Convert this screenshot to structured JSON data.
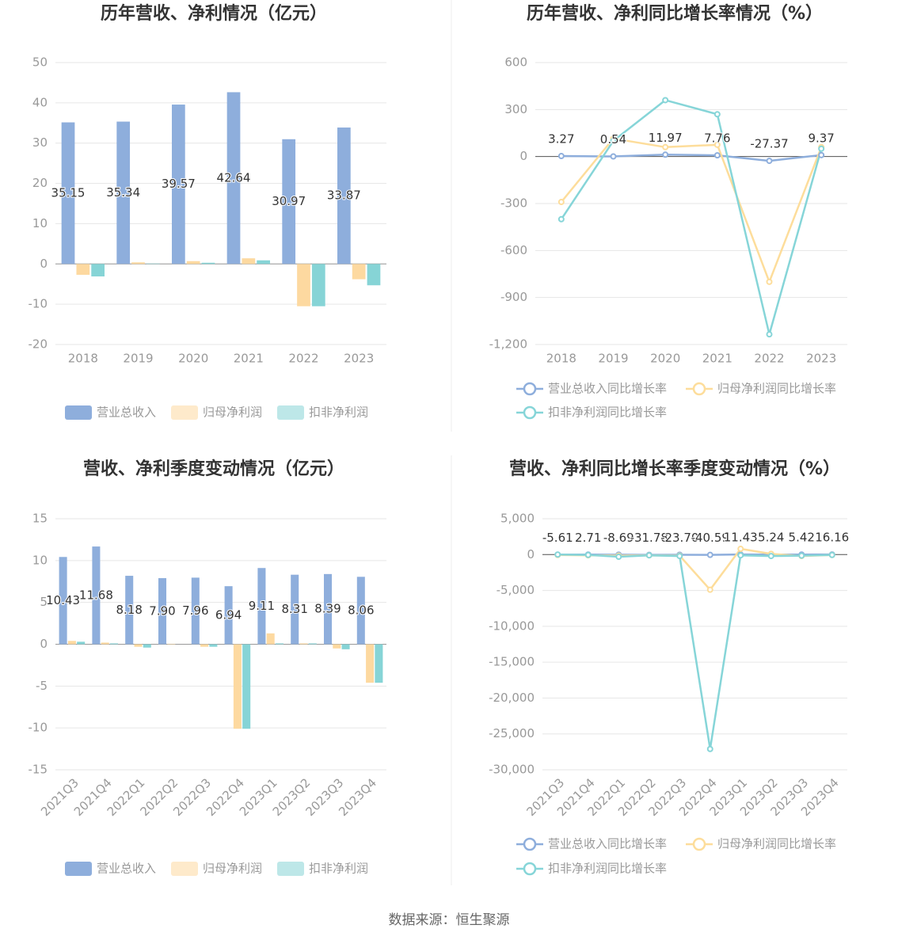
{
  "chart_data": [
    {
      "type": "bar",
      "title": "历年营收、净利情况（亿元）",
      "categories": [
        "2018",
        "2019",
        "2020",
        "2021",
        "2022",
        "2023"
      ],
      "series": [
        {
          "name": "营业总收入",
          "color": "#8eaedc",
          "show_labels": true,
          "values": [
            35.15,
            35.34,
            39.57,
            42.64,
            30.97,
            33.87
          ]
        },
        {
          "name": "归母净利润",
          "color": "#fdd9a0",
          "values": [
            -2.7,
            0.4,
            0.7,
            1.4,
            -10.5,
            -3.8
          ]
        },
        {
          "name": "扣非净利润",
          "color": "#86d4d6",
          "values": [
            -3.1,
            0.1,
            0.3,
            0.9,
            -10.5,
            -5.3
          ]
        }
      ],
      "ylim": [
        -20,
        50
      ],
      "yticks": [
        -20,
        -10,
        0,
        10,
        20,
        30,
        40,
        50
      ],
      "grid": true
    },
    {
      "type": "line",
      "title": "历年营收、净利同比增长率情况（%）",
      "categories": [
        "2018",
        "2019",
        "2020",
        "2021",
        "2022",
        "2023"
      ],
      "series": [
        {
          "name": "营业总收入同比增长率",
          "color": "#8eaedc",
          "show_labels": true,
          "values": [
            3.27,
            0.54,
            11.97,
            7.76,
            -27.37,
            9.37
          ]
        },
        {
          "name": "归母净利润同比增长率",
          "color": "#fddd9b",
          "values": [
            -290,
            115,
            60,
            75,
            -800,
            60
          ]
        },
        {
          "name": "扣非净利润同比增长率",
          "color": "#86d5d8",
          "values": [
            -400,
            100,
            360,
            270,
            -1135,
            50
          ]
        }
      ],
      "ylim": [
        -1200,
        600
      ],
      "yticks": [
        {
          "value": -1200,
          "label": "-1,200"
        },
        -900,
        -600,
        -300,
        0,
        300,
        600
      ],
      "grid": true
    },
    {
      "type": "bar",
      "title": "营收、净利季度变动情况（亿元）",
      "categories": [
        "2021Q3",
        "2021Q4",
        "2022Q1",
        "2022Q2",
        "2022Q3",
        "2022Q4",
        "2023Q1",
        "2023Q2",
        "2023Q3",
        "2023Q4"
      ],
      "series": [
        {
          "name": "营业总收入",
          "color": "#8eaedc",
          "show_labels": true,
          "values": [
            10.43,
            11.68,
            8.18,
            7.9,
            7.96,
            6.94,
            9.11,
            8.31,
            8.39,
            8.06
          ],
          "value_labels": [
            "10.43",
            "11.68",
            "8.18",
            "7.90",
            "7.96",
            "6.94",
            "9.11",
            "8.31",
            "8.39",
            "8.06"
          ]
        },
        {
          "name": "归母净利润",
          "color": "#fdd9a0",
          "values": [
            0.4,
            0.2,
            -0.3,
            0.05,
            -0.3,
            -10.1,
            1.3,
            0.1,
            -0.5,
            -4.6
          ]
        },
        {
          "name": "扣非净利润",
          "color": "#86d4d6",
          "values": [
            0.3,
            0.1,
            -0.4,
            0.0,
            -0.3,
            -10.1,
            0.1,
            0.1,
            -0.6,
            -4.6
          ]
        }
      ],
      "ylim": [
        -15,
        15
      ],
      "yticks": [
        -15,
        -10,
        -5,
        0,
        5,
        10,
        15
      ],
      "grid": true
    },
    {
      "type": "line",
      "title": "营收、净利同比增长率季度变动情况（%）",
      "categories": [
        "2021Q3",
        "2021Q4",
        "2022Q1",
        "2022Q2",
        "2022Q3",
        "2022Q4",
        "2023Q1",
        "2023Q2",
        "2023Q3",
        "2023Q4"
      ],
      "series": [
        {
          "name": "营业总收入同比增长率",
          "color": "#8eaedc",
          "show_labels": true,
          "values": [
            -5.61,
            2.71,
            -8.69,
            -31.78,
            -23.7,
            -40.59,
            11.43,
            5.24,
            5.42,
            16.16
          ],
          "value_labels": [
            "-5.61",
            "2.71",
            "-8.69",
            "-31.78",
            "-23.70",
            "-40.59",
            "11.43",
            "5.24",
            "5.42",
            "16.16"
          ]
        },
        {
          "name": "归母净利润同比增长率",
          "color": "#fddd9b",
          "values": [
            -50,
            -100,
            -150,
            -100,
            -150,
            -4900,
            800,
            100,
            -200,
            -50
          ]
        },
        {
          "name": "扣非净利润同比增长率",
          "color": "#86d5d8",
          "values": [
            0,
            -50,
            -300,
            -100,
            -200,
            -27100,
            -100,
            -200,
            -150,
            -50
          ]
        }
      ],
      "ylim": [
        -30000,
        5000
      ],
      "yticks": [
        {
          "value": -30000,
          "label": "-30,000"
        },
        {
          "value": -25000,
          "label": "-25,000"
        },
        {
          "value": -20000,
          "label": "-20,000"
        },
        {
          "value": -15000,
          "label": "-15,000"
        },
        {
          "value": -10000,
          "label": "-10,000"
        },
        {
          "value": -5000,
          "label": "-5,000"
        },
        0,
        {
          "value": 5000,
          "label": "5,000"
        }
      ],
      "grid": true
    }
  ],
  "source": "数据来源：恒生聚源"
}
